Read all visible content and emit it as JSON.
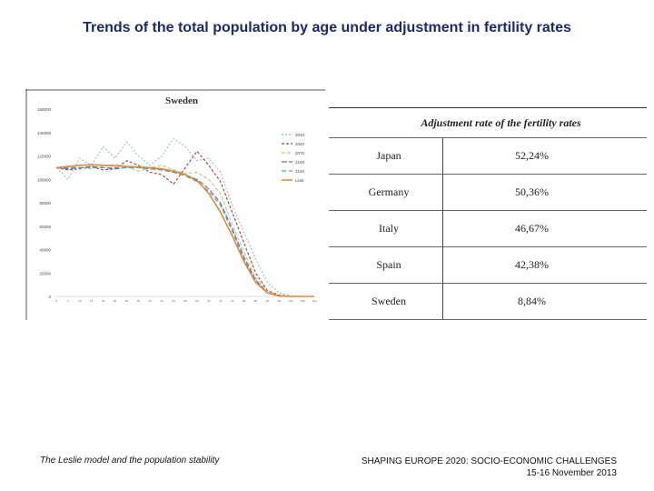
{
  "slide": {
    "title": "Trends of the total population by age under adjustment in fertility rates"
  },
  "footer": {
    "left": "The Leslie model and the population stability",
    "right_line1": "SHAPING EUROPE 2020: SOCIO-ECONOMIC CHALLENGES",
    "right_line2": "15-16 November 2013"
  },
  "chart_data": [
    {
      "type": "line",
      "title": "Sweden",
      "xlabel": "",
      "ylabel": "",
      "ylim": [
        0,
        160000
      ],
      "yticks": [
        "0",
        "20000",
        "40000",
        "60000",
        "80000",
        "100000",
        "120000",
        "140000",
        "160000"
      ],
      "x": [
        0,
        5,
        10,
        15,
        20,
        25,
        30,
        35,
        40,
        45,
        50,
        55,
        60,
        65,
        70,
        75,
        80,
        85,
        90,
        95,
        100,
        105,
        110
      ],
      "legend_position": "right",
      "grid": false,
      "series": [
        {
          "name": "2010",
          "color": "#9bbbd9",
          "dash": "2,2",
          "values": [
            110000,
            100000,
            118000,
            112000,
            128000,
            118000,
            132000,
            120000,
            112000,
            120000,
            135000,
            128000,
            116000,
            118000,
            106000,
            78000,
            55000,
            32000,
            12000,
            3000,
            500,
            0,
            0
          ]
        },
        {
          "name": "2040",
          "color": "#a0413c",
          "dash": "3,2",
          "values": [
            110000,
            108000,
            109000,
            111000,
            108000,
            109000,
            116000,
            112000,
            106000,
            104000,
            96000,
            110000,
            124000,
            112000,
            98000,
            72000,
            46000,
            20000,
            5000,
            1000,
            0,
            0,
            0
          ]
        },
        {
          "name": "2070",
          "color": "#b9c98b",
          "dash": "4,2",
          "values": [
            110000,
            111000,
            110000,
            109000,
            111000,
            113000,
            111000,
            107000,
            110000,
            112000,
            108000,
            105000,
            106000,
            100000,
            88000,
            62000,
            38000,
            16000,
            4000,
            500,
            0,
            0,
            0
          ]
        },
        {
          "name": "2100",
          "color": "#7b6a9c",
          "dash": "6,2",
          "values": [
            110000,
            109000,
            110000,
            111000,
            110000,
            109000,
            110000,
            110000,
            109000,
            108000,
            106000,
            104000,
            100000,
            92000,
            80000,
            58000,
            34000,
            14000,
            3000,
            500,
            0,
            0,
            0
          ]
        },
        {
          "name": "2150",
          "color": "#4f9fb8",
          "dash": "5,3",
          "values": [
            110000,
            110000,
            110000,
            110000,
            110000,
            110000,
            110000,
            110000,
            109000,
            108000,
            106000,
            103000,
            98000,
            90000,
            78000,
            56000,
            32000,
            13000,
            3000,
            500,
            0,
            0,
            0
          ]
        },
        {
          "name": "Limit",
          "color": "#e08a3c",
          "dash": "",
          "values": [
            110000,
            111000,
            112000,
            112500,
            112000,
            111500,
            111000,
            110500,
            110000,
            109000,
            107000,
            104000,
            99000,
            88000,
            72000,
            52000,
            30000,
            12000,
            3000,
            500,
            0,
            0,
            0
          ]
        }
      ]
    },
    {
      "type": "table",
      "header": "Adjustment rate of the fertility rates",
      "rows": [
        {
          "country": "Japan",
          "rate": "52,24%"
        },
        {
          "country": "Germany",
          "rate": "50,36%"
        },
        {
          "country": "Italy",
          "rate": "46,67%"
        },
        {
          "country": "Spain",
          "rate": "42,38%"
        },
        {
          "country": "Sweden",
          "rate": "8,84%"
        }
      ]
    }
  ]
}
